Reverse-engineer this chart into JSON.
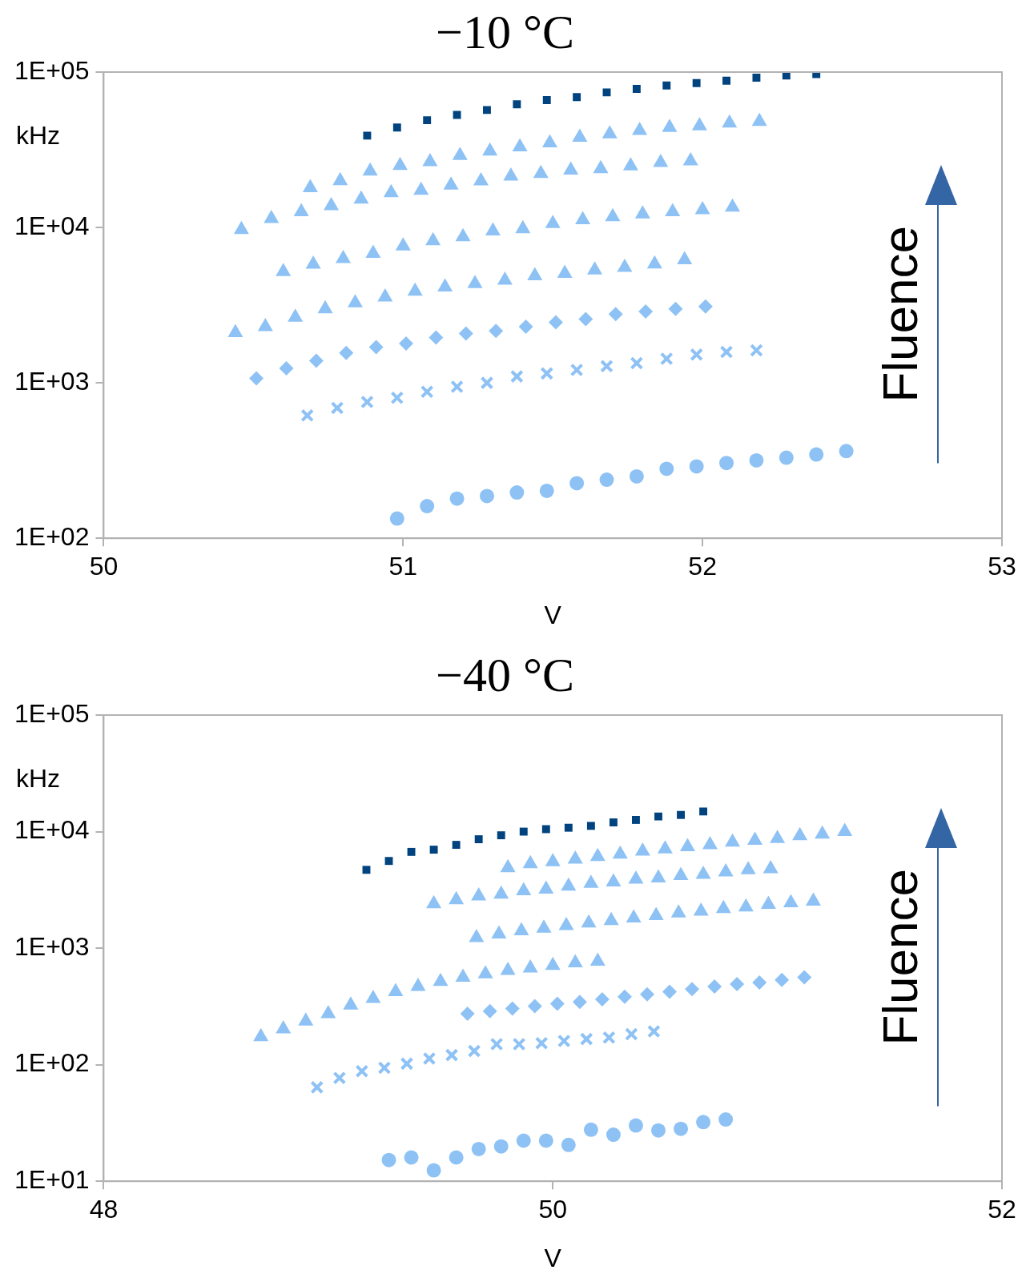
{
  "chart_data": [
    {
      "type": "scatter",
      "title": "−10 °C",
      "xlabel": "V",
      "ylabel": "kHz",
      "log": "y",
      "grid": false,
      "legend": false,
      "xlim": [
        50,
        53
      ],
      "xticks": [
        50,
        51,
        52,
        53
      ],
      "ylim": [
        100,
        100000
      ],
      "yticks": [
        {
          "value": 100,
          "label": "1E+02"
        },
        {
          "value": 1000,
          "label": "1E+03"
        },
        {
          "value": 10000,
          "label": "1E+04"
        },
        {
          "value": 100000,
          "label": "1E+05"
        }
      ],
      "annotations": [
        "Fluence"
      ],
      "series": [
        {
          "marker": "square",
          "color": "#00437f",
          "x": [
            50.88,
            50.98,
            51.08,
            51.18,
            51.28,
            51.38,
            51.48,
            51.58,
            51.68,
            51.78,
            51.88,
            51.98,
            52.08,
            52.18,
            52.28,
            52.38
          ],
          "values": [
            39000,
            44000,
            49000,
            53000,
            57000,
            62000,
            66000,
            69000,
            74000,
            78000,
            82000,
            85000,
            88000,
            92000,
            95000,
            97000
          ]
        },
        {
          "marker": "triangle",
          "color": "#8ec2f5",
          "x": [
            50.69,
            50.79,
            50.89,
            50.99,
            51.09,
            51.19,
            51.29,
            51.39,
            51.49,
            51.59,
            51.69,
            51.79,
            51.89,
            51.99,
            52.09,
            52.19
          ],
          "values": [
            18000,
            20000,
            23000,
            25000,
            26500,
            29000,
            31000,
            33000,
            35000,
            38000,
            40000,
            42000,
            44000,
            45000,
            47000,
            48000
          ]
        },
        {
          "marker": "triangle",
          "color": "#8ec2f5",
          "x": [
            50.46,
            50.56,
            50.66,
            50.76,
            50.86,
            50.96,
            51.06,
            51.16,
            51.26,
            51.36,
            51.46,
            51.56,
            51.66,
            51.76,
            51.86,
            51.96
          ],
          "values": [
            9700,
            11400,
            12600,
            13800,
            15200,
            16700,
            17300,
            18700,
            19900,
            21400,
            22200,
            23400,
            23900,
            24900,
            26200,
            26800
          ]
        },
        {
          "marker": "triangle",
          "color": "#8ec2f5",
          "x": [
            50.6,
            50.7,
            50.8,
            50.9,
            51.0,
            51.1,
            51.2,
            51.3,
            51.4,
            51.5,
            51.6,
            51.7,
            51.8,
            51.9,
            52.0,
            52.1
          ],
          "values": [
            5200,
            5800,
            6300,
            6800,
            7600,
            8200,
            8700,
            9500,
            9800,
            10600,
            11200,
            11700,
            12200,
            12600,
            13000,
            13500
          ]
        },
        {
          "marker": "triangle",
          "color": "#8ec2f5",
          "x": [
            50.44,
            50.54,
            50.64,
            50.74,
            50.84,
            50.94,
            51.04,
            51.14,
            51.24,
            51.34,
            51.44,
            51.54,
            51.64,
            51.74,
            51.84,
            51.94
          ],
          "values": [
            2100,
            2300,
            2640,
            2990,
            3270,
            3570,
            3890,
            4140,
            4350,
            4580,
            4880,
            5060,
            5320,
            5530,
            5810,
            6190
          ]
        },
        {
          "marker": "diamond",
          "color": "#8ec2f5",
          "x": [
            50.51,
            50.61,
            50.71,
            50.81,
            50.91,
            51.01,
            51.11,
            51.21,
            51.31,
            51.41,
            51.51,
            51.61,
            51.71,
            51.81,
            51.91,
            52.01
          ],
          "values": [
            1070,
            1240,
            1390,
            1560,
            1700,
            1790,
            1960,
            2080,
            2160,
            2300,
            2450,
            2570,
            2770,
            2880,
            2990,
            3100
          ]
        },
        {
          "marker": "cross",
          "color": "#8ec2f5",
          "x": [
            50.68,
            50.78,
            50.88,
            50.98,
            51.08,
            51.18,
            51.28,
            51.38,
            51.48,
            51.58,
            51.68,
            51.78,
            51.88,
            51.98,
            52.08,
            52.18
          ],
          "values": [
            617,
            690,
            754,
            802,
            876,
            944,
            1000,
            1100,
            1150,
            1210,
            1280,
            1340,
            1430,
            1520,
            1580,
            1620
          ]
        },
        {
          "marker": "circle",
          "color": "#8ec2f5",
          "x": [
            50.98,
            51.08,
            51.18,
            51.28,
            51.38,
            51.48,
            51.58,
            51.68,
            51.78,
            51.88,
            51.98,
            52.08,
            52.18,
            52.28,
            52.38,
            52.48
          ],
          "values": [
            134,
            161,
            180,
            187,
            197,
            202,
            226,
            238,
            250,
            280,
            290,
            305,
            317,
            330,
            346,
            364
          ]
        }
      ]
    },
    {
      "type": "scatter",
      "title": "−40 °C",
      "xlabel": "V",
      "ylabel": "kHz",
      "log": "y",
      "grid": false,
      "legend": false,
      "xlim": [
        48,
        52
      ],
      "xticks": [
        48,
        50,
        52
      ],
      "ylim": [
        10,
        100000
      ],
      "yticks": [
        {
          "value": 10,
          "label": "1E+01"
        },
        {
          "value": 100,
          "label": "1E+02"
        },
        {
          "value": 1000,
          "label": "1E+03"
        },
        {
          "value": 10000,
          "label": "1E+04"
        },
        {
          "value": 100000,
          "label": "1E+05"
        }
      ],
      "annotations": [
        "Fluence"
      ],
      "series": [
        {
          "marker": "square",
          "color": "#00437f",
          "x": [
            49.17,
            49.27,
            49.37,
            49.47,
            49.57,
            49.67,
            49.77,
            49.87,
            49.97,
            50.07,
            50.17,
            50.27,
            50.37,
            50.47,
            50.57,
            50.67
          ],
          "values": [
            4700,
            5600,
            6700,
            7000,
            7700,
            8600,
            9300,
            10000,
            10500,
            10800,
            11200,
            12000,
            12600,
            13500,
            13900,
            14900
          ]
        },
        {
          "marker": "triangle",
          "color": "#8ec2f5",
          "x": [
            49.8,
            49.9,
            50.0,
            50.1,
            50.2,
            50.3,
            50.4,
            50.5,
            50.6,
            50.7,
            50.8,
            50.9,
            51.0,
            51.1,
            51.2,
            51.3
          ],
          "values": [
            4900,
            5300,
            5500,
            5800,
            6100,
            6400,
            6800,
            7100,
            7400,
            7700,
            8100,
            8400,
            8700,
            9200,
            9500,
            10000
          ]
        },
        {
          "marker": "triangle",
          "color": "#8ec2f5",
          "x": [
            49.47,
            49.57,
            49.67,
            49.77,
            49.87,
            49.97,
            50.07,
            50.17,
            50.27,
            50.37,
            50.47,
            50.57,
            50.67,
            50.77,
            50.87,
            50.97
          ],
          "values": [
            2400,
            2600,
            2800,
            2900,
            3100,
            3200,
            3400,
            3600,
            3700,
            3900,
            4000,
            4200,
            4300,
            4500,
            4700,
            4800
          ]
        },
        {
          "marker": "triangle",
          "color": "#8ec2f5",
          "x": [
            49.66,
            49.76,
            49.86,
            49.96,
            50.06,
            50.16,
            50.26,
            50.36,
            50.46,
            50.56,
            50.66,
            50.76,
            50.86,
            50.96,
            51.06,
            51.16
          ],
          "values": [
            1230,
            1320,
            1410,
            1480,
            1560,
            1640,
            1720,
            1810,
            1900,
            2000,
            2070,
            2180,
            2250,
            2370,
            2450,
            2530
          ]
        },
        {
          "marker": "triangle",
          "color": "#8ec2f5",
          "x": [
            48.7,
            48.8,
            48.9,
            49.0,
            49.1,
            49.2,
            49.3,
            49.4,
            49.5,
            49.6,
            49.7,
            49.8,
            49.9,
            50.0,
            50.1,
            50.2
          ],
          "values": [
            174,
            203,
            236,
            274,
            324,
            370,
            423,
            468,
            517,
            562,
            601,
            643,
            675,
            710,
            746,
            771
          ]
        },
        {
          "marker": "diamond",
          "color": "#8ec2f5",
          "x": [
            49.62,
            49.72,
            49.82,
            49.92,
            50.02,
            50.12,
            50.22,
            50.32,
            50.42,
            50.52,
            50.62,
            50.72,
            50.82,
            50.92,
            51.02,
            51.12
          ],
          "values": [
            274,
            288,
            303,
            318,
            334,
            346,
            364,
            383,
            402,
            423,
            445,
            468,
            491,
            508,
            535,
            562
          ]
        },
        {
          "marker": "cross",
          "color": "#8ec2f5",
          "x": [
            48.95,
            49.05,
            49.15,
            49.25,
            49.35,
            49.45,
            49.55,
            49.65,
            49.75,
            49.85,
            49.95,
            50.05,
            50.15,
            50.25,
            50.35,
            50.45
          ],
          "values": [
            64,
            77,
            88,
            94,
            102,
            113,
            121,
            131,
            150,
            150,
            153,
            160,
            166,
            171,
            183,
            193
          ]
        },
        {
          "marker": "circle",
          "color": "#8ec2f5",
          "x": [
            49.27,
            49.37,
            49.47,
            49.57,
            49.67,
            49.77,
            49.87,
            49.97,
            50.07,
            50.17,
            50.27,
            50.37,
            50.47,
            50.57,
            50.67,
            50.77
          ],
          "values": [
            15.2,
            16,
            12.4,
            16,
            18.9,
            19.9,
            22.3,
            22.3,
            20.5,
            27.7,
            25.1,
            30.1,
            27.3,
            28.2,
            32.2,
            33.9
          ]
        }
      ]
    }
  ]
}
